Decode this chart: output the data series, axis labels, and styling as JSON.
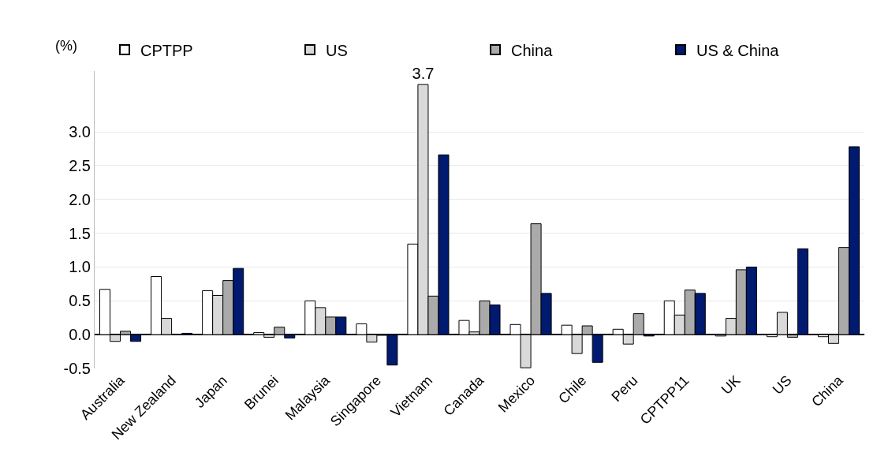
{
  "chart_data": {
    "type": "bar",
    "ylabel": "(%)",
    "categories": [
      "Australia",
      "New Zealand",
      "Japan",
      "Brunei",
      "Malaysia",
      "Singapore",
      "Vietnam",
      "Canada",
      "Mexico",
      "Chile",
      "Peru",
      "CPTPP11",
      "UK",
      "US",
      "China"
    ],
    "series": [
      {
        "name": "CPTPP",
        "color": "#ffffff",
        "values": [
          0.67,
          0.86,
          0.65,
          0.03,
          0.5,
          0.16,
          1.34,
          0.21,
          0.15,
          0.14,
          0.08,
          0.5,
          -0.02,
          -0.03,
          -0.03
        ]
      },
      {
        "name": "US",
        "color": "#d9d9d9",
        "values": [
          -0.1,
          0.24,
          0.58,
          -0.04,
          0.4,
          -0.11,
          3.7,
          0.04,
          -0.49,
          -0.28,
          -0.14,
          0.29,
          0.24,
          0.33,
          -0.13
        ],
        "value_labels": [
          null,
          null,
          null,
          null,
          null,
          null,
          "3.7",
          null,
          null,
          null,
          null,
          null,
          null,
          null,
          null
        ]
      },
      {
        "name": "China",
        "color": "#aaaaaa",
        "values": [
          0.05,
          0.0,
          0.8,
          0.11,
          0.26,
          -0.01,
          0.57,
          0.5,
          1.64,
          0.13,
          0.31,
          0.66,
          0.96,
          -0.04,
          1.29
        ]
      },
      {
        "name": "US & China",
        "color": "#001a70",
        "values": [
          -0.1,
          0.02,
          0.98,
          -0.05,
          0.26,
          -0.45,
          2.66,
          0.44,
          0.61,
          -0.41,
          -0.02,
          0.61,
          1.0,
          1.27,
          2.78
        ]
      }
    ],
    "ylim": [
      -0.5,
      3.9
    ],
    "yticks": [
      {
        "value": -0.5,
        "label": "-0.5"
      },
      {
        "value": 0,
        "label": "0.0"
      },
      {
        "value": 0.5,
        "label": "0.5"
      },
      {
        "value": 1,
        "label": "1.0"
      },
      {
        "value": 1.5,
        "label": "1.5"
      },
      {
        "value": 2,
        "label": "2.0"
      },
      {
        "value": 2.5,
        "label": "2.5"
      },
      {
        "value": 3,
        "label": "3.0"
      }
    ],
    "grid": "y",
    "legend": "top"
  }
}
